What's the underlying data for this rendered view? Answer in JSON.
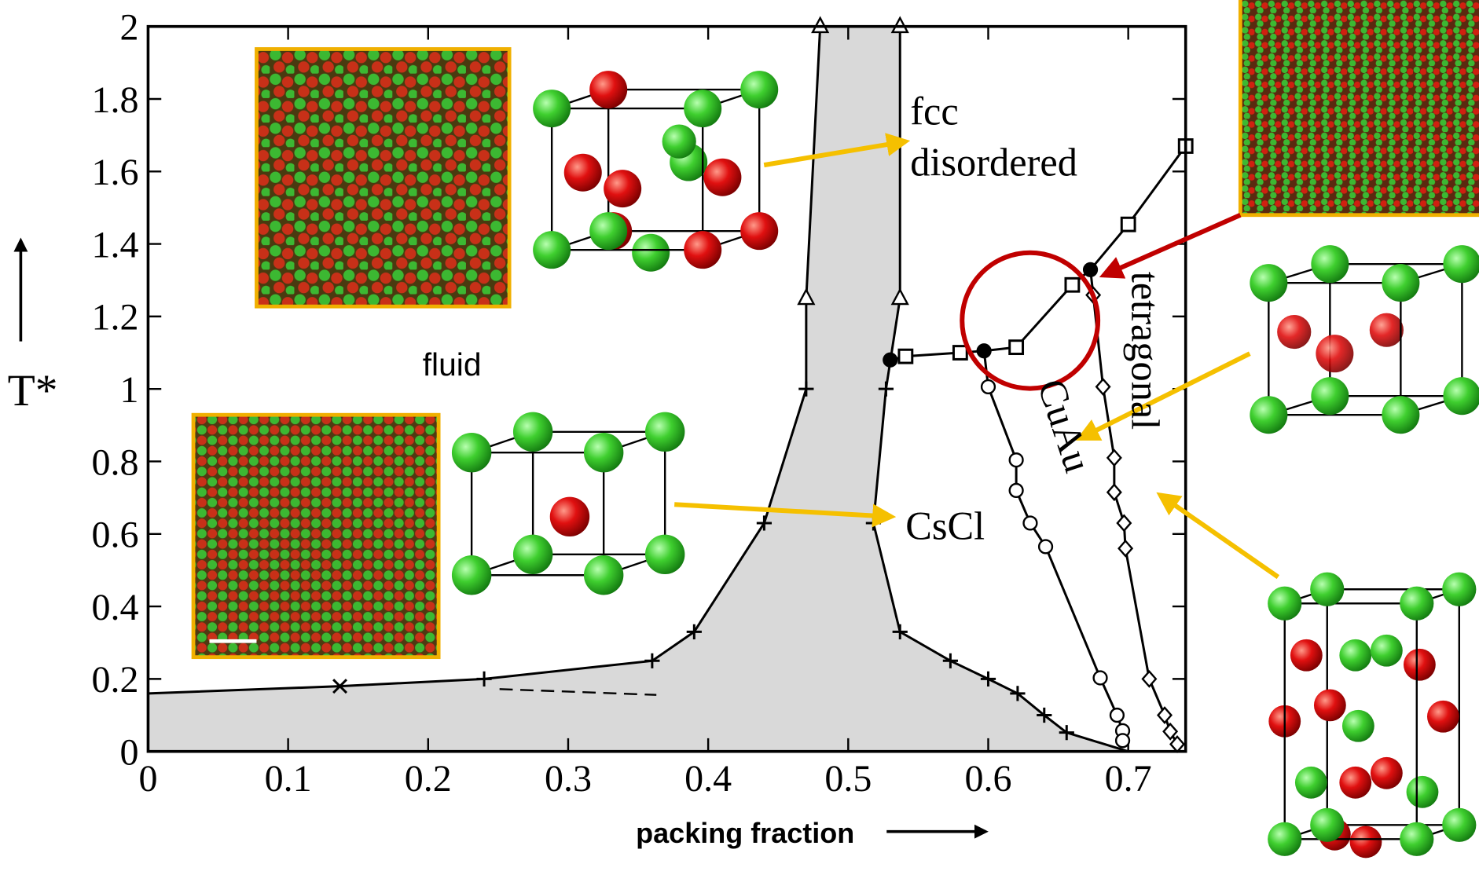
{
  "chart_data": {
    "type": "line",
    "x_label": "packing fraction",
    "y_label": "T*",
    "xlim": [
      0,
      0.741
    ],
    "ylim": [
      0,
      2
    ],
    "xticks": [
      0,
      0.1,
      0.2,
      0.3,
      0.4,
      0.5,
      0.6,
      0.7
    ],
    "yticks": [
      0,
      0.2,
      0.4,
      0.6,
      0.8,
      1,
      1.2,
      1.4,
      1.6,
      1.8,
      2
    ],
    "region_color": "#d9d9d9",
    "annotations": [
      "fcc",
      "disordered",
      "fluid",
      "CsCl",
      "CuAu",
      "tetragonal"
    ],
    "series": [
      {
        "color": "#000000",
        "x": [
          0,
          0.137,
          0.24,
          0.36,
          0.39,
          0.44,
          0.47,
          0.47,
          0.48
        ],
        "y": [
          0.16,
          0.18,
          0.2,
          0.25,
          0.33,
          0.63,
          1.0,
          1.25,
          2.0
        ],
        "markers": [
          "none",
          "cross",
          "plus",
          "plus",
          "plus",
          "plus",
          "plus",
          "triangle",
          "triangle"
        ]
      },
      {
        "color": "#000000",
        "x": [
          0.537,
          0.537,
          0.527,
          0.518,
          0.537,
          0.573,
          0.6,
          0.621,
          0.64,
          0.656,
          0.7
        ],
        "y": [
          2.0,
          1.25,
          1.0,
          0.63,
          0.33,
          0.25,
          0.2,
          0.16,
          0.1,
          0.052,
          0
        ],
        "markers": [
          "triangle",
          "triangle",
          "plus",
          "plus",
          "plus",
          "plus",
          "plus",
          "plus",
          "plus",
          "plus",
          "none"
        ]
      },
      {
        "color": "#000000",
        "x": [
          0.53,
          0.541,
          0.58,
          0.597,
          0.62,
          0.66,
          0.673,
          0.7,
          0.741
        ],
        "y": [
          1.08,
          1.09,
          1.1,
          1.105,
          1.115,
          1.287,
          1.329,
          1.454,
          1.67
        ],
        "markers": [
          "filled-circle",
          "square",
          "square",
          "filled-circle",
          "square",
          "square",
          "filled-circle",
          "square",
          "square"
        ]
      },
      {
        "color": "#000000",
        "x": [
          0.597,
          0.6,
          0.62,
          0.62,
          0.63,
          0.641,
          0.68,
          0.692,
          0.696,
          0.696
        ],
        "y": [
          1.105,
          1.006,
          0.804,
          0.72,
          0.63,
          0.565,
          0.203,
          0.1,
          0.057,
          0.03
        ],
        "markers": [
          "none",
          "circle",
          "circle",
          "circle",
          "circle",
          "circle",
          "circle",
          "circle",
          "circle",
          "circle"
        ]
      },
      {
        "color": "#000000",
        "x": [
          0.673,
          0.675,
          0.682,
          0.69,
          0.69,
          0.697,
          0.698,
          0.715,
          0.726,
          0.73,
          0.735
        ],
        "y": [
          1.329,
          1.259,
          1.006,
          0.81,
          0.715,
          0.63,
          0.56,
          0.2,
          0.1,
          0.055,
          0.02
        ],
        "markers": [
          "none",
          "diamond",
          "diamond",
          "diamond",
          "diamond",
          "diamond",
          "diamond",
          "diamond",
          "diamond",
          "diamond",
          "diamond"
        ]
      },
      {
        "color": "#000000",
        "dashed": true,
        "x": [
          0.251,
          0.363
        ],
        "y": [
          0.172,
          0.156
        ],
        "markers": [
          "none",
          "none"
        ]
      }
    ]
  }
}
